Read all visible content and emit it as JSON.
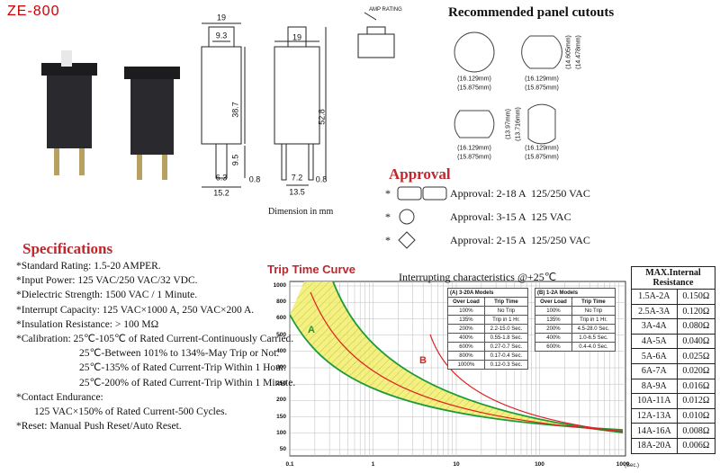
{
  "header": {
    "model": "ZE-800"
  },
  "dimensions": {
    "labels": [
      "19",
      "9.3",
      "19",
      "38.7",
      "52.8",
      "9.5",
      "6.3",
      "15.2",
      "0.8",
      "7.2",
      "0.8",
      "13.5"
    ],
    "amp_rating": "AMP RATING",
    "caption": "Dimension in mm"
  },
  "cutouts": {
    "title": "Recommended panel cutouts",
    "labels": [
      "(16.129mm)",
      "(15.875mm)",
      "(16.129mm)",
      "(15.875mm)",
      "(14.605mm)",
      "(14.478mm)",
      "(16.129mm)",
      "(15.875mm)",
      "(13.97mm)",
      "(13.716mm)",
      "(16.129mm)",
      "(15.875mm)"
    ]
  },
  "approval": {
    "title": "Approval",
    "items": [
      {
        "marker": "*",
        "text": "Approval: 2-18 A  125/250 VAC"
      },
      {
        "marker": "*",
        "text": "Approval: 3-15 A  125 VAC"
      },
      {
        "marker": "*",
        "text": "Approval: 2-15 A  125/250 VAC"
      }
    ]
  },
  "specifications": {
    "title": "Specifications",
    "lines": [
      "*Standard Rating: 1.5-20 AMPER.",
      "*Input Power: 125 VAC/250 VAC/32 VDC.",
      "*Dielectric Strength: 1500 VAC / 1 Minute.",
      "*Interrupt Capacity: 125 VAC×1000 A, 250 VAC×200 A.",
      "*Insulation Resistance: > 100 MΩ",
      "*Calibration: 25℃-105℃ of Rated Current-Continuously Carried.",
      "25℃-Between 101% to 134%-May Trip or Not.",
      "25℃-135% of Rated Current-Trip Within 1 Hour.",
      "25℃-200% of Rated Current-Trip Within 1 Minute.",
      "*Contact Endurance:",
      "125 VAC×150% of Rated Current-500 Cycles.",
      "*Reset: Manual Push Reset/Auto Reset."
    ]
  },
  "trip_curve": {
    "title": "Trip Time Curve",
    "subtitle": "Interrupting characteristics @+25℃",
    "y_labels": [
      "1000",
      "800",
      "600",
      "500",
      "400",
      "300",
      "250",
      "200",
      "150",
      "100",
      "50"
    ],
    "x_labels": [
      "0.1",
      "1",
      "10",
      "100",
      "1000"
    ],
    "x_unit": "(Sec.)",
    "curve_labels": [
      "A",
      "B"
    ],
    "table_a": {
      "title": "(A) 3-20A Models",
      "header": [
        "Over Load",
        "Trip Time"
      ],
      "rows": [
        [
          "100%",
          "No Trip"
        ],
        [
          "135%",
          "Trip in 1 Hr."
        ],
        [
          "200%",
          "2.2-15.0 Sec."
        ],
        [
          "400%",
          "0.55-1.8 Sec."
        ],
        [
          "600%",
          "0.27-0.7 Sec."
        ],
        [
          "800%",
          "0.17-0.4 Sec."
        ],
        [
          "1000%",
          "0.12-0.3 Sec."
        ]
      ]
    },
    "table_b": {
      "title": "(B) 1-2A Models",
      "header": [
        "Over Load",
        "Trip Time"
      ],
      "rows": [
        [
          "100%",
          "No Trip"
        ],
        [
          "135%",
          "Trip in 1 Hr."
        ],
        [
          "200%",
          "4.5-28.0 Sec."
        ],
        [
          "400%",
          "1.0-6.5 Sec."
        ],
        [
          "600%",
          "0.4-4.0 Sec."
        ]
      ]
    }
  },
  "resistance_table": {
    "header": "MAX.Internal Resistance",
    "rows": [
      [
        "1.5A-2A",
        "0.150Ω"
      ],
      [
        "2.5A-3A",
        "0.120Ω"
      ],
      [
        "3A-4A",
        "0.080Ω"
      ],
      [
        "4A-5A",
        "0.040Ω"
      ],
      [
        "5A-6A",
        "0.025Ω"
      ],
      [
        "6A-7A",
        "0.020Ω"
      ],
      [
        "8A-9A",
        "0.016Ω"
      ],
      [
        "10A-11A",
        "0.012Ω"
      ],
      [
        "12A-13A",
        "0.010Ω"
      ],
      [
        "14A-16A",
        "0.008Ω"
      ],
      [
        "18A-20A",
        "0.006Ω"
      ]
    ]
  }
}
